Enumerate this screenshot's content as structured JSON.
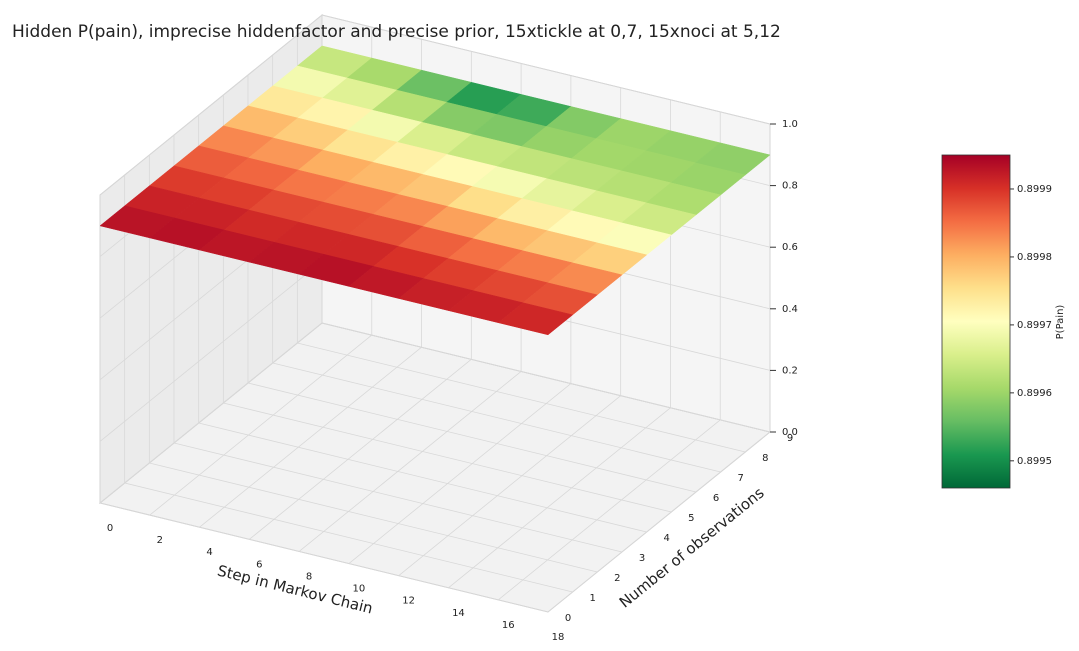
{
  "chart_data": {
    "type": "surface",
    "title": "Hidden P(pain), imprecise hiddenfactor and precise prior, 15xtickle at 0,7, 15xnoci at 5,12",
    "x_label": "Step in Markov Chain",
    "y_label": "Number of observations",
    "colorbar_label": "P(Pain)",
    "x": [
      0,
      2,
      4,
      6,
      8,
      10,
      12,
      14,
      16,
      18
    ],
    "y": [
      0,
      1,
      2,
      3,
      4,
      5,
      6,
      7,
      8,
      9
    ],
    "z": [
      [
        0.89993,
        0.89994,
        0.89994,
        0.89993,
        0.89994,
        0.89994,
        0.89993,
        0.89993,
        0.89993,
        0.89992
      ],
      [
        0.89992,
        0.89993,
        0.89992,
        0.89992,
        0.89993,
        0.89992,
        0.89991,
        0.8999,
        0.8999,
        0.89989
      ],
      [
        0.8999,
        0.89991,
        0.8999,
        0.89989,
        0.8999,
        0.89989,
        0.89988,
        0.89987,
        0.89986,
        0.89985
      ],
      [
        0.89988,
        0.89988,
        0.89987,
        0.89986,
        0.89986,
        0.89985,
        0.89983,
        0.89982,
        0.89981,
        0.8998
      ],
      [
        0.89985,
        0.89985,
        0.89983,
        0.89982,
        0.89982,
        0.8998,
        0.89977,
        0.89975,
        0.89974,
        0.89973
      ],
      [
        0.89982,
        0.89981,
        0.89979,
        0.89977,
        0.89976,
        0.89974,
        0.89971,
        0.89969,
        0.89967,
        0.89966
      ],
      [
        0.89977,
        0.89976,
        0.89973,
        0.8997,
        0.89968,
        0.89967,
        0.89965,
        0.89964,
        0.89963,
        0.89962
      ],
      [
        0.89972,
        0.89971,
        0.89969,
        0.89964,
        0.89961,
        0.8996,
        0.89961,
        0.89961,
        0.89961,
        0.8996
      ],
      [
        0.89968,
        0.89965,
        0.89961,
        0.89955,
        0.89953,
        0.89957,
        0.8996,
        0.8996,
        0.89959,
        0.89959
      ],
      [
        0.89962,
        0.8996,
        0.89958,
        0.89951,
        0.89948,
        0.89955,
        0.8996,
        0.8996,
        0.89959,
        0.89959
      ]
    ],
    "xlim": [
      0,
      18
    ],
    "xticks": [
      0,
      2,
      4,
      6,
      8,
      10,
      12,
      14,
      16,
      18
    ],
    "ylim": [
      0,
      9
    ],
    "yticks": [
      0,
      1,
      2,
      3,
      4,
      5,
      6,
      7,
      8,
      9
    ],
    "zlim": [
      0,
      1
    ],
    "zticks": [
      {
        "value": 0,
        "label": "0.0"
      },
      {
        "value": 0.2,
        "label": "0.2"
      },
      {
        "value": 0.4,
        "label": "0.4"
      },
      {
        "value": 0.6,
        "label": "0.6"
      },
      {
        "value": 0.8,
        "label": "0.8"
      },
      {
        "value": 1,
        "label": "1.0"
      }
    ],
    "clim": [
      0.89946,
      0.89995
    ],
    "cticks": [
      0.8995,
      0.8996,
      0.8997,
      0.8998,
      0.8999
    ],
    "colormap": [
      "#006837",
      "#1a9850",
      "#66bd63",
      "#a6d96a",
      "#d9ef8b",
      "#ffffbf",
      "#fee08b",
      "#fdae61",
      "#f46d43",
      "#d73027",
      "#a50026"
    ],
    "grid": true
  }
}
